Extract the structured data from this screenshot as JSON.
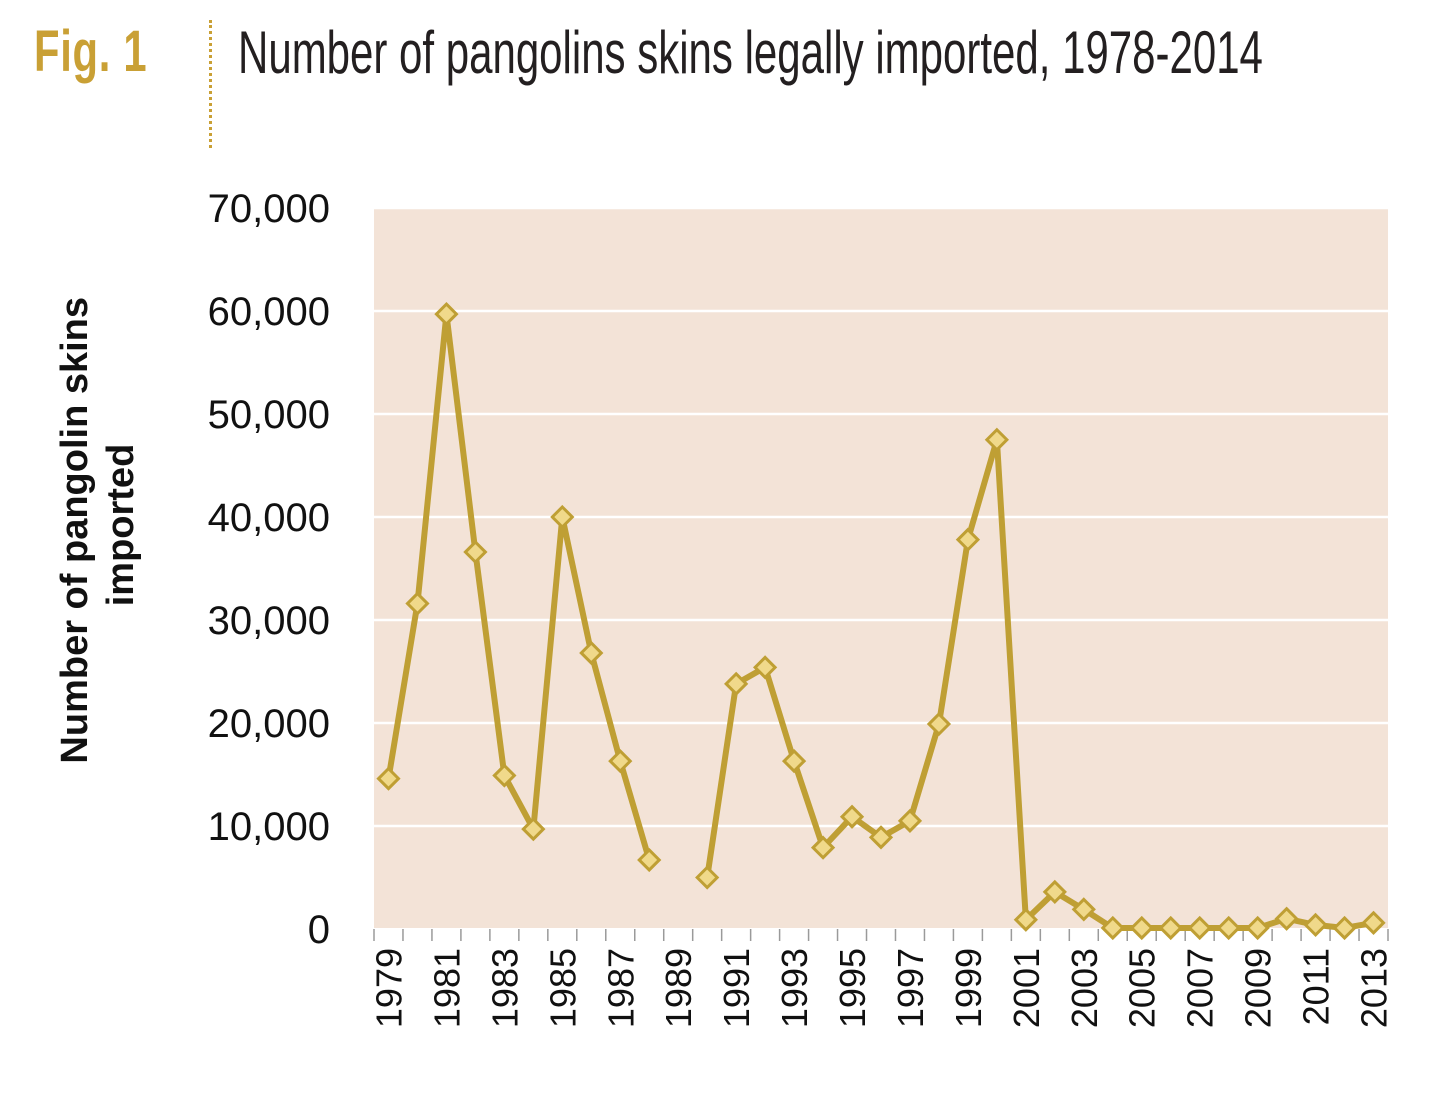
{
  "figure": {
    "label": "Fig. 1",
    "title": "Number of pangolins skins legally imported, 1978-2014"
  },
  "colors": {
    "accent": "#c9a035",
    "line": "#bf9f34",
    "marker_fill": "#f0d98a",
    "plot_bg": "#f3e3d7",
    "grid": "#ffffff"
  },
  "chart_data": {
    "type": "line",
    "title": "Number of pangolins skins legally imported, 1978-2014",
    "xlabel": "",
    "ylabel_lines": [
      "Number of pangolin skins",
      "imported"
    ],
    "ylim": [
      0,
      70000
    ],
    "yticks": [
      0,
      10000,
      20000,
      30000,
      40000,
      50000,
      60000,
      70000
    ],
    "ytick_labels": [
      "0",
      "10,000",
      "20,000",
      "30,000",
      "40,000",
      "50,000",
      "60,000",
      "70,000"
    ],
    "xtick_labels": [
      "1979",
      "1981",
      "1983",
      "1985",
      "1987",
      "1989",
      "1991",
      "1993",
      "1995",
      "1997",
      "1999",
      "2001",
      "2003",
      "2005",
      "2007",
      "2009",
      "2011",
      "2013"
    ],
    "grid": true,
    "marker": "diamond",
    "series": [
      {
        "x": [
          1979,
          1980,
          1981,
          1982,
          1983,
          1984,
          1985,
          1986,
          1987,
          1988,
          1989,
          1990,
          1991,
          1992,
          1993,
          1994,
          1995,
          1996,
          1997,
          1998,
          1999,
          2000,
          2001,
          2002,
          2003,
          2004,
          2005,
          2006,
          2007,
          2008,
          2009,
          2010,
          2011,
          2012,
          2013
        ],
        "y": [
          14600,
          31600,
          59700,
          36600,
          14900,
          9700,
          40000,
          26800,
          16300,
          6700,
          null,
          5000,
          23800,
          25400,
          16300,
          7900,
          10900,
          8900,
          10500,
          19900,
          37800,
          47500,
          900,
          3600,
          1900,
          100,
          100,
          100,
          100,
          100,
          100,
          1000,
          400,
          100,
          600
        ]
      }
    ]
  }
}
